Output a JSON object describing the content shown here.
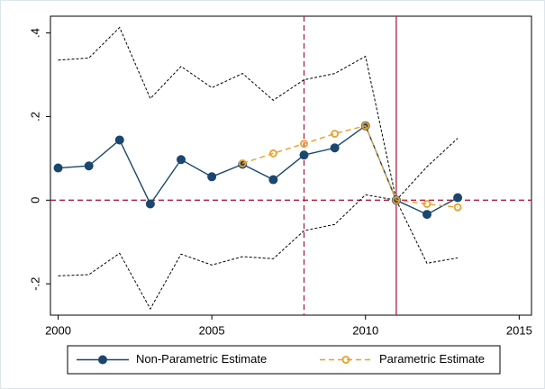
{
  "chart_data": {
    "type": "line",
    "x": [
      2000,
      2001,
      2002,
      2003,
      2004,
      2005,
      2006,
      2007,
      2008,
      2009,
      2010,
      2011,
      2012,
      2013
    ],
    "series": [
      {
        "color": "#000000",
        "dash": "dotted",
        "values": [
          0.335,
          0.34,
          0.413,
          0.243,
          0.32,
          0.269,
          0.303,
          0.239,
          0.288,
          0.303,
          0.344,
          0,
          0.08,
          0.148
        ]
      },
      {
        "color": "#000000",
        "dash": "dotted",
        "values": [
          -0.181,
          -0.178,
          -0.127,
          -0.26,
          -0.129,
          -0.155,
          -0.135,
          -0.14,
          -0.073,
          -0.058,
          0.013,
          0,
          -0.151,
          -0.138
        ]
      },
      {
        "name": "Non-Parametric Estimate",
        "color": "#1a476f",
        "dash": "solid",
        "marker": "filled",
        "values": [
          0.077,
          0.082,
          0.144,
          -0.009,
          0.097,
          0.056,
          0.086,
          0.049,
          0.108,
          0.125,
          0.178,
          0,
          -0.034,
          0.006
        ]
      },
      {
        "name": "Parametric Estimate",
        "color": "#e8a02c",
        "dash": "dashed",
        "marker": "hollow",
        "values": [
          null,
          null,
          null,
          null,
          null,
          null,
          0.088,
          0.112,
          0.135,
          0.159,
          0.178,
          0,
          -0.009,
          -0.017
        ]
      }
    ],
    "xlim": [
      1999.75,
      2015.4
    ],
    "ylim": [
      -0.275,
      0.44
    ],
    "xticks": [
      2000,
      2005,
      2010,
      2015
    ],
    "yticks": [
      {
        "value": -0.2,
        "label": "-.2"
      },
      0,
      {
        "value": 0.2,
        "label": ".2"
      },
      {
        "value": 0.4,
        "label": ".4"
      }
    ],
    "reference_lines": {
      "color": "#b0203f",
      "x": [
        {
          "value": 2008,
          "dash": "dashed"
        },
        {
          "value": 2011,
          "dash": "solid"
        }
      ],
      "y": [
        {
          "value": 0,
          "dash": "dashed"
        }
      ]
    },
    "legend": "bottom"
  }
}
